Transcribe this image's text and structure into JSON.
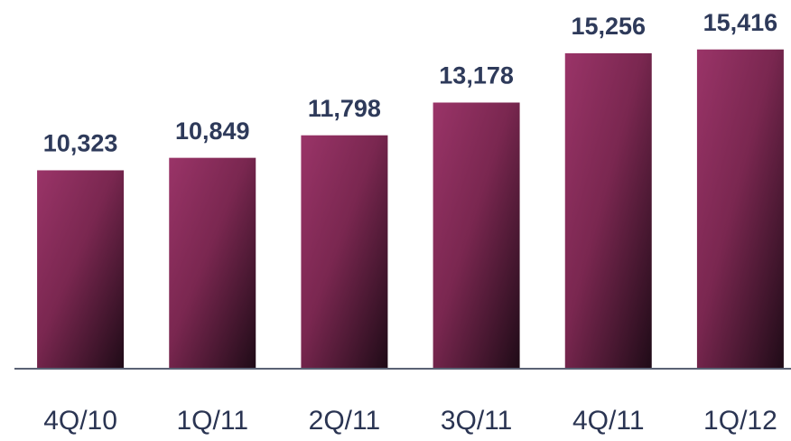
{
  "chart_data": {
    "type": "bar",
    "categories": [
      "4Q/10",
      "1Q/11",
      "2Q/11",
      "3Q/11",
      "4Q/11",
      "1Q/12"
    ],
    "values": [
      10323,
      10849,
      11798,
      13178,
      15256,
      15416
    ],
    "value_labels": [
      "10,323",
      "10,849",
      "11,798",
      "13,178",
      "15,256",
      "15,416"
    ],
    "color": "#9a3468",
    "ylim": [
      2000,
      17500
    ]
  }
}
